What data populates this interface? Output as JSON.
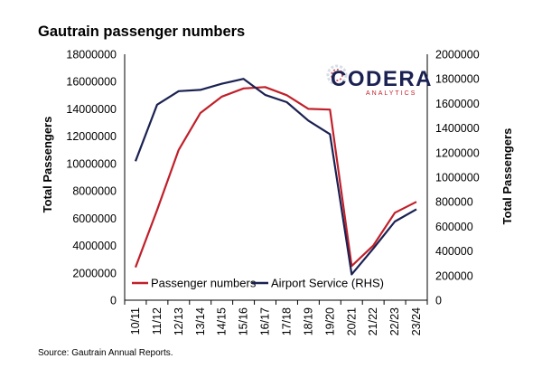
{
  "chart_data": {
    "type": "line",
    "title": "Gautrain passenger numbers",
    "source": "Source: Gautrain Annual Reports.",
    "categories": [
      "10/11",
      "11/12",
      "12/13",
      "13/14",
      "14/15",
      "15/16",
      "16/17",
      "17/18",
      "18/19",
      "19/20",
      "20/21",
      "21/22",
      "22/23",
      "23/24"
    ],
    "y_left": {
      "label": "Total Passengers",
      "min": 0,
      "max": 18000000,
      "ticks": [
        "0",
        "2000000",
        "4000000",
        "6000000",
        "8000000",
        "10000000",
        "12000000",
        "14000000",
        "16000000",
        "18000000"
      ]
    },
    "y_right": {
      "label": "Total Passengers",
      "min": 0,
      "max": 2000000,
      "ticks": [
        "0",
        "200000",
        "400000",
        "600000",
        "800000",
        "1000000",
        "1200000",
        "1400000",
        "1600000",
        "1800000",
        "2000000"
      ]
    },
    "series": [
      {
        "name": "Passenger numbers",
        "axis": "left",
        "color": "#C0202A",
        "values": [
          2400000,
          6600000,
          11000000,
          13700000,
          14900000,
          15500000,
          15600000,
          15000000,
          14000000,
          13950000,
          2500000,
          4000000,
          6400000,
          7200000
        ]
      },
      {
        "name": "Airport Service (RHS)",
        "axis": "right",
        "color": "#1B2152",
        "values": [
          1130000,
          1590000,
          1700000,
          1710000,
          1760000,
          1800000,
          1670000,
          1610000,
          1460000,
          1350000,
          210000,
          420000,
          640000,
          740000
        ]
      }
    ],
    "legend_position": "bottom-left",
    "grid": false
  },
  "logo": {
    "text": "CODERA",
    "subtext": "ANALYTICS"
  }
}
